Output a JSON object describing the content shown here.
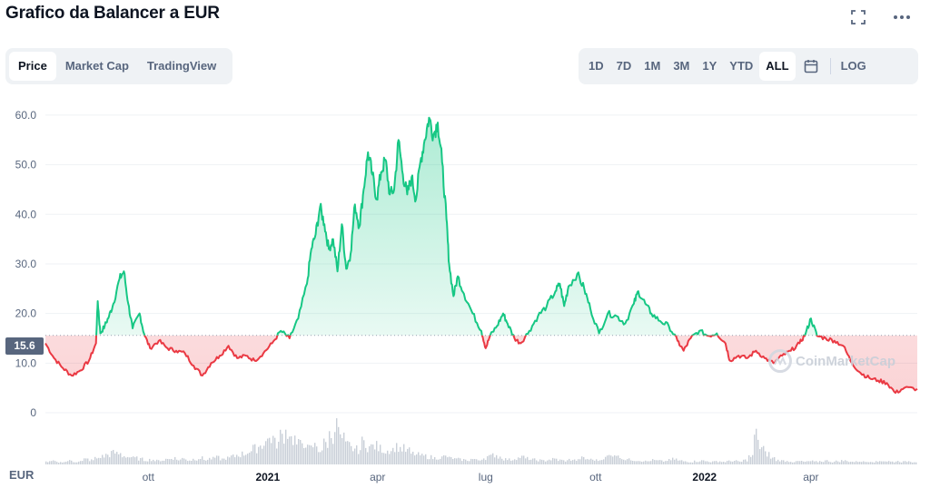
{
  "page": {
    "title": "Grafico da Balancer a EUR"
  },
  "icons": {
    "fullscreen": "fullscreen-icon",
    "more": "more-horizontal-icon",
    "calendar": "calendar-icon"
  },
  "tabs": [
    {
      "label": "Price",
      "active": true
    },
    {
      "label": "Market Cap",
      "active": false
    },
    {
      "label": "TradingView",
      "active": false
    }
  ],
  "ranges": [
    {
      "label": "1D",
      "active": false
    },
    {
      "label": "7D",
      "active": false
    },
    {
      "label": "1M",
      "active": false
    },
    {
      "label": "3M",
      "active": false
    },
    {
      "label": "1Y",
      "active": false
    },
    {
      "label": "YTD",
      "active": false
    },
    {
      "label": "ALL",
      "active": true
    }
  ],
  "log_label": "LOG",
  "current_price_label": "15.6",
  "currency_label": "EUR",
  "watermark": "CoinMarketCap",
  "colors": {
    "up": "#16c784",
    "down": "#ea3943",
    "baseline": "#9aa5b8",
    "volume": "#c9cfd8"
  },
  "chart_data": {
    "type": "area",
    "baseline_value": 15.6,
    "ylim": [
      0,
      62
    ],
    "yticks": [
      "60.0",
      "50.0",
      "40.0",
      "30.0",
      "20.0",
      "10.0",
      "0"
    ],
    "xticks": [
      {
        "label": "ott",
        "t": 0.118,
        "bold": false
      },
      {
        "label": "2021",
        "t": 0.255,
        "bold": true
      },
      {
        "label": "apr",
        "t": 0.381,
        "bold": false
      },
      {
        "label": "lug",
        "t": 0.505,
        "bold": false
      },
      {
        "label": "ott",
        "t": 0.631,
        "bold": false
      },
      {
        "label": "2022",
        "t": 0.756,
        "bold": true
      },
      {
        "label": "apr",
        "t": 0.878,
        "bold": false
      }
    ],
    "series": [
      {
        "values": [
          {
            "t": 0.0,
            "v": 14.0
          },
          {
            "t": 0.01,
            "v": 11.0
          },
          {
            "t": 0.02,
            "v": 9.0
          },
          {
            "t": 0.03,
            "v": 7.5
          },
          {
            "t": 0.04,
            "v": 8.5
          },
          {
            "t": 0.05,
            "v": 10.5
          },
          {
            "t": 0.058,
            "v": 14.0
          },
          {
            "t": 0.06,
            "v": 22.5
          },
          {
            "t": 0.063,
            "v": 16.0
          },
          {
            "t": 0.068,
            "v": 17.5
          },
          {
            "t": 0.073,
            "v": 19.5
          },
          {
            "t": 0.078,
            "v": 22.0
          },
          {
            "t": 0.085,
            "v": 27.0
          },
          {
            "t": 0.09,
            "v": 28.5
          },
          {
            "t": 0.095,
            "v": 22.0
          },
          {
            "t": 0.1,
            "v": 17.0
          },
          {
            "t": 0.108,
            "v": 20.0
          },
          {
            "t": 0.113,
            "v": 16.0
          },
          {
            "t": 0.12,
            "v": 13.0
          },
          {
            "t": 0.13,
            "v": 14.5
          },
          {
            "t": 0.14,
            "v": 13.0
          },
          {
            "t": 0.15,
            "v": 12.5
          },
          {
            "t": 0.16,
            "v": 12.0
          },
          {
            "t": 0.17,
            "v": 9.5
          },
          {
            "t": 0.18,
            "v": 7.5
          },
          {
            "t": 0.19,
            "v": 10.0
          },
          {
            "t": 0.2,
            "v": 11.5
          },
          {
            "t": 0.21,
            "v": 13.5
          },
          {
            "t": 0.22,
            "v": 11.0
          },
          {
            "t": 0.23,
            "v": 11.5
          },
          {
            "t": 0.24,
            "v": 10.5
          },
          {
            "t": 0.25,
            "v": 12.0
          },
          {
            "t": 0.26,
            "v": 14.0
          },
          {
            "t": 0.27,
            "v": 16.5
          },
          {
            "t": 0.28,
            "v": 15.0
          },
          {
            "t": 0.29,
            "v": 19.0
          },
          {
            "t": 0.3,
            "v": 26.0
          },
          {
            "t": 0.305,
            "v": 33.0
          },
          {
            "t": 0.31,
            "v": 36.0
          },
          {
            "t": 0.315,
            "v": 41.5
          },
          {
            "t": 0.32,
            "v": 38.0
          },
          {
            "t": 0.325,
            "v": 33.0
          },
          {
            "t": 0.33,
            "v": 35.0
          },
          {
            "t": 0.335,
            "v": 28.5
          },
          {
            "t": 0.34,
            "v": 38.0
          },
          {
            "t": 0.345,
            "v": 29.0
          },
          {
            "t": 0.35,
            "v": 32.0
          },
          {
            "t": 0.355,
            "v": 42.0
          },
          {
            "t": 0.36,
            "v": 37.5
          },
          {
            "t": 0.365,
            "v": 45.0
          },
          {
            "t": 0.37,
            "v": 52.5
          },
          {
            "t": 0.375,
            "v": 48.0
          },
          {
            "t": 0.38,
            "v": 43.0
          },
          {
            "t": 0.385,
            "v": 48.5
          },
          {
            "t": 0.39,
            "v": 51.0
          },
          {
            "t": 0.395,
            "v": 44.0
          },
          {
            "t": 0.4,
            "v": 45.0
          },
          {
            "t": 0.405,
            "v": 55.0
          },
          {
            "t": 0.41,
            "v": 48.0
          },
          {
            "t": 0.415,
            "v": 44.0
          },
          {
            "t": 0.42,
            "v": 47.5
          },
          {
            "t": 0.425,
            "v": 43.0
          },
          {
            "t": 0.43,
            "v": 50.5
          },
          {
            "t": 0.435,
            "v": 55.0
          },
          {
            "t": 0.44,
            "v": 59.5
          },
          {
            "t": 0.445,
            "v": 56.0
          },
          {
            "t": 0.45,
            "v": 58.5
          },
          {
            "t": 0.455,
            "v": 50.5
          },
          {
            "t": 0.46,
            "v": 39.0
          },
          {
            "t": 0.463,
            "v": 30.0
          },
          {
            "t": 0.468,
            "v": 23.5
          },
          {
            "t": 0.473,
            "v": 27.5
          },
          {
            "t": 0.48,
            "v": 24.0
          },
          {
            "t": 0.49,
            "v": 20.0
          },
          {
            "t": 0.5,
            "v": 16.5
          },
          {
            "t": 0.505,
            "v": 13.0
          },
          {
            "t": 0.51,
            "v": 15.5
          },
          {
            "t": 0.518,
            "v": 17.5
          },
          {
            "t": 0.525,
            "v": 20.0
          },
          {
            "t": 0.53,
            "v": 18.0
          },
          {
            "t": 0.538,
            "v": 15.0
          },
          {
            "t": 0.545,
            "v": 14.0
          },
          {
            "t": 0.555,
            "v": 16.5
          },
          {
            "t": 0.565,
            "v": 19.5
          },
          {
            "t": 0.575,
            "v": 21.5
          },
          {
            "t": 0.585,
            "v": 24.5
          },
          {
            "t": 0.59,
            "v": 26.0
          },
          {
            "t": 0.595,
            "v": 21.5
          },
          {
            "t": 0.6,
            "v": 25.5
          },
          {
            "t": 0.61,
            "v": 28.0
          },
          {
            "t": 0.618,
            "v": 25.0
          },
          {
            "t": 0.625,
            "v": 21.0
          },
          {
            "t": 0.635,
            "v": 16.0
          },
          {
            "t": 0.645,
            "v": 20.0
          },
          {
            "t": 0.655,
            "v": 19.5
          },
          {
            "t": 0.665,
            "v": 18.0
          },
          {
            "t": 0.675,
            "v": 22.0
          },
          {
            "t": 0.68,
            "v": 24.5
          },
          {
            "t": 0.688,
            "v": 22.0
          },
          {
            "t": 0.695,
            "v": 20.0
          },
          {
            "t": 0.705,
            "v": 18.5
          },
          {
            "t": 0.715,
            "v": 17.5
          },
          {
            "t": 0.725,
            "v": 14.5
          },
          {
            "t": 0.732,
            "v": 12.5
          },
          {
            "t": 0.74,
            "v": 15.0
          },
          {
            "t": 0.75,
            "v": 16.5
          },
          {
            "t": 0.76,
            "v": 15.5
          },
          {
            "t": 0.77,
            "v": 16.0
          },
          {
            "t": 0.78,
            "v": 14.0
          },
          {
            "t": 0.785,
            "v": 10.5
          },
          {
            "t": 0.795,
            "v": 11.5
          },
          {
            "t": 0.805,
            "v": 11.0
          },
          {
            "t": 0.815,
            "v": 12.5
          },
          {
            "t": 0.825,
            "v": 11.0
          },
          {
            "t": 0.835,
            "v": 10.0
          },
          {
            "t": 0.845,
            "v": 11.5
          },
          {
            "t": 0.855,
            "v": 12.5
          },
          {
            "t": 0.865,
            "v": 14.0
          },
          {
            "t": 0.872,
            "v": 16.0
          },
          {
            "t": 0.878,
            "v": 19.0
          },
          {
            "t": 0.885,
            "v": 15.5
          },
          {
            "t": 0.895,
            "v": 15.0
          },
          {
            "t": 0.905,
            "v": 14.5
          },
          {
            "t": 0.915,
            "v": 13.5
          },
          {
            "t": 0.925,
            "v": 10.0
          },
          {
            "t": 0.935,
            "v": 8.0
          },
          {
            "t": 0.945,
            "v": 7.0
          },
          {
            "t": 0.955,
            "v": 6.5
          },
          {
            "t": 0.965,
            "v": 6.0
          },
          {
            "t": 0.975,
            "v": 4.0
          },
          {
            "t": 0.985,
            "v": 5.0
          },
          {
            "t": 1.0,
            "v": 4.8
          }
        ]
      }
    ],
    "volume": [
      0.05,
      0.06,
      0.04,
      0.05,
      0.07,
      0.05,
      0.06,
      0.1,
      0.08,
      0.12,
      0.15,
      0.18,
      0.22,
      0.2,
      0.16,
      0.14,
      0.12,
      0.1,
      0.08,
      0.09,
      0.07,
      0.08,
      0.1,
      0.12,
      0.09,
      0.11,
      0.08,
      0.1,
      0.12,
      0.09,
      0.11,
      0.13,
      0.1,
      0.12,
      0.15,
      0.18,
      0.2,
      0.25,
      0.3,
      0.35,
      0.45,
      0.5,
      0.4,
      0.55,
      0.62,
      0.48,
      0.38,
      0.42,
      0.3,
      0.35,
      0.28,
      0.4,
      0.55,
      0.72,
      0.48,
      0.36,
      0.3,
      0.28,
      0.42,
      0.33,
      0.35,
      0.3,
      0.26,
      0.28,
      0.33,
      0.3,
      0.26,
      0.2,
      0.18,
      0.16,
      0.14,
      0.12,
      0.13,
      0.15,
      0.12,
      0.1,
      0.09,
      0.08,
      0.1,
      0.08,
      0.12,
      0.15,
      0.18,
      0.14,
      0.1,
      0.09,
      0.12,
      0.14,
      0.11,
      0.09,
      0.08,
      0.07,
      0.09,
      0.1,
      0.08,
      0.07,
      0.09,
      0.08,
      0.12,
      0.1,
      0.09,
      0.08,
      0.12,
      0.16,
      0.2,
      0.14,
      0.1,
      0.09,
      0.08,
      0.07,
      0.06,
      0.08,
      0.07,
      0.06,
      0.08,
      0.1,
      0.07,
      0.06,
      0.05,
      0.06,
      0.07,
      0.06,
      0.05,
      0.06,
      0.05,
      0.06,
      0.07,
      0.05,
      0.08,
      0.15,
      0.55,
      0.3,
      0.2,
      0.12,
      0.08,
      0.07,
      0.06,
      0.05,
      0.06,
      0.05,
      0.06,
      0.05,
      0.06,
      0.07,
      0.05,
      0.06,
      0.07,
      0.06,
      0.05,
      0.06,
      0.05,
      0.06,
      0.05,
      0.07,
      0.06,
      0.05,
      0.06,
      0.05,
      0.06,
      0.05
    ]
  }
}
